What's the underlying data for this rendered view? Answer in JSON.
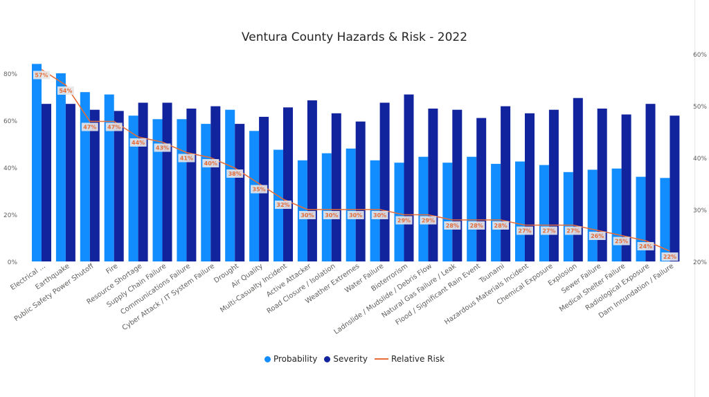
{
  "chart_data": {
    "type": "bar",
    "title": "Ventura County Hazards & Risk - 2022",
    "categories": [
      "Electrical ...",
      "Earthquake",
      "Public Safety Power Shutoff",
      "Fire",
      "Resource Shortage",
      "Supply Chain Failure",
      "Communications Failure",
      "Cyber Attack / IT System Failure",
      "Drought",
      "Air Quality",
      "Multi-Casualty Incident",
      "Active Attacker",
      "Road Closure / Isolation",
      "Weather Extremes",
      "Water Failure",
      "Bioterrorism",
      "Ladnslide / Mudslide / Debris Flow",
      "Natural Gas Failure / Leak",
      "Flood / Significant Rain Event",
      "Tsunami",
      "Hazardous Materials Incident",
      "Chemical Exposure",
      "Explosion",
      "Sewer Failure",
      "Medical Shelter Failure",
      "Radiological Exposure",
      "Dam Innundation / Failure"
    ],
    "series": [
      {
        "name": "Probability",
        "axis": "left",
        "color": "#118dff",
        "values": [
          84,
          80,
          72,
          71,
          62,
          60.5,
          60.5,
          58.5,
          64.5,
          55.5,
          47.5,
          43,
          46,
          48,
          43,
          42,
          44.5,
          42,
          44.5,
          41.5,
          42.5,
          41,
          38,
          39,
          39.5,
          36,
          35.5
        ]
      },
      {
        "name": "Severity",
        "axis": "left",
        "color": "#12239e",
        "values": [
          67,
          67,
          64.5,
          64,
          67.5,
          67.5,
          65,
          66,
          58.5,
          61.5,
          65.5,
          68.5,
          63,
          59.5,
          67.5,
          71,
          65,
          64.5,
          61,
          66,
          63,
          64.5,
          69.5,
          65,
          62.5,
          67,
          62
        ]
      },
      {
        "name": "Relative Risk",
        "type": "line",
        "axis": "right",
        "color": "#e66c37",
        "values": [
          57,
          54,
          47,
          47,
          44,
          43,
          41,
          40,
          38,
          35,
          32,
          30,
          30,
          30,
          30,
          29,
          29,
          28,
          28,
          28,
          27,
          27,
          27,
          26,
          25,
          24,
          22
        ],
        "labels": [
          "57%",
          "54%",
          "47%",
          "47%",
          "44%",
          "43%",
          "41%",
          "40%",
          "38%",
          "35%",
          "32%",
          "30%",
          "30%",
          "30%",
          "30%",
          "29%",
          "29%",
          "28%",
          "28%",
          "28%",
          "27%",
          "27%",
          "27%",
          "26%",
          "25%",
          "24%",
          "22%"
        ]
      }
    ],
    "y_left": {
      "range": [
        0,
        90
      ],
      "ticks": [
        0,
        20,
        40,
        60,
        80
      ],
      "tick_labels": [
        "0%",
        "20%",
        "40%",
        "60%",
        "80%"
      ]
    },
    "y_right": {
      "range": [
        20,
        60
      ],
      "ticks": [
        20,
        30,
        40,
        50,
        60
      ],
      "tick_labels": [
        "20%",
        "30%",
        "40%",
        "50%",
        "60%"
      ]
    },
    "grid": false,
    "legend": "bottom-center"
  },
  "legend": {
    "probability": "Probability",
    "severity": "Severity",
    "risk": "Relative Risk"
  }
}
